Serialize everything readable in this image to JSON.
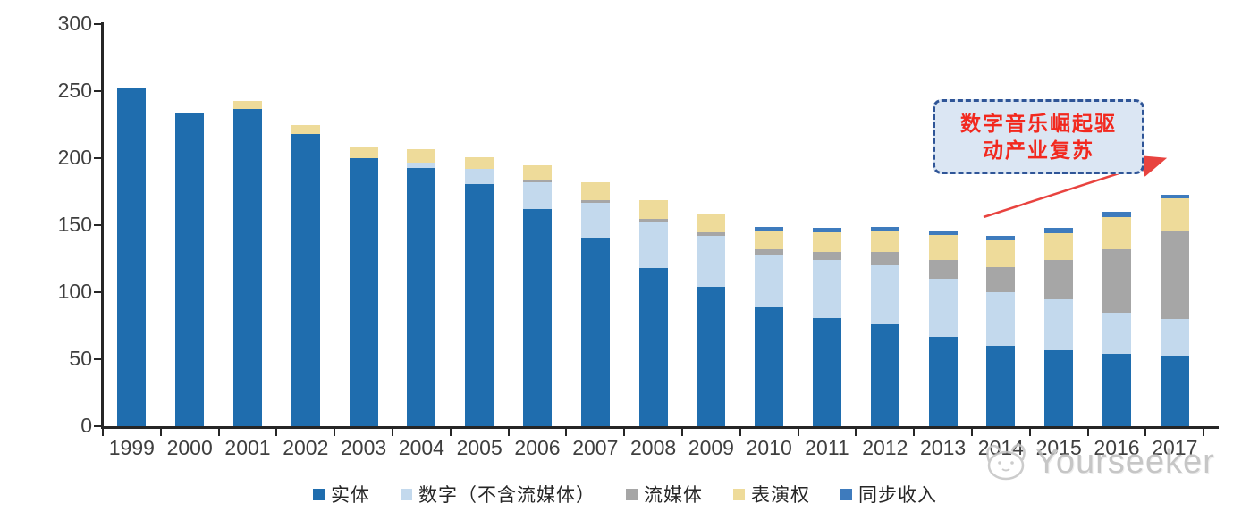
{
  "annotation": {
    "line1": "数字音乐崛起驱",
    "line2": "动产业复苏",
    "box_fill": "#dbe6f3",
    "box_border": "#2f5597",
    "text_color": "#f2281e",
    "arrow_color": "#e8433f"
  },
  "watermark": {
    "brand": "Yourseeker",
    "logo": "cat-face-icon",
    "color": "#bdbdbd"
  },
  "axis": {
    "label_color": "#3f3f3f",
    "line_color": "#262626"
  },
  "chart_data": {
    "type": "bar",
    "stacked": true,
    "title": "",
    "xlabel": "",
    "ylabel": "",
    "ylim": [
      0,
      300
    ],
    "yticks": [
      0,
      50,
      100,
      150,
      200,
      250,
      300
    ],
    "grid": false,
    "legend_position": "bottom",
    "categories": [
      "1999",
      "2000",
      "2001",
      "2002",
      "2003",
      "2004",
      "2005",
      "2006",
      "2007",
      "2008",
      "2009",
      "2010",
      "2011",
      "2012",
      "2013",
      "2014",
      "2015",
      "2016",
      "2017"
    ],
    "series": [
      {
        "key": "physical",
        "name": "实体",
        "color": "#1f6dae",
        "values": [
          252,
          234,
          237,
          218,
          200,
          193,
          181,
          162,
          141,
          118,
          104,
          89,
          81,
          76,
          67,
          60,
          57,
          54,
          52
        ]
      },
      {
        "key": "digital",
        "name": "数字（不含流媒体）",
        "color": "#c3d9ed",
        "values": [
          0,
          0,
          0,
          0,
          0,
          4,
          11,
          20,
          26,
          34,
          38,
          39,
          43,
          44,
          43,
          40,
          38,
          31,
          28
        ]
      },
      {
        "key": "streaming",
        "name": "流媒体",
        "color": "#a6a6a6",
        "values": [
          0,
          0,
          0,
          0,
          0,
          0,
          0,
          2,
          2,
          3,
          3,
          4,
          6,
          10,
          14,
          19,
          29,
          47,
          66
        ]
      },
      {
        "key": "performance",
        "name": "表演权",
        "color": "#eedb9a",
        "values": [
          0,
          0,
          6,
          7,
          8,
          10,
          9,
          11,
          13,
          14,
          13,
          14,
          15,
          16,
          19,
          20,
          20,
          24,
          24
        ]
      },
      {
        "key": "sync",
        "name": "同步收入",
        "color": "#3e7bbd",
        "values": [
          0,
          0,
          0,
          0,
          0,
          0,
          0,
          0,
          0,
          0,
          0,
          3,
          3,
          3,
          3,
          3,
          4,
          4,
          3
        ]
      }
    ],
    "totals": [
      252,
      234,
      243,
      225,
      208,
      207,
      201,
      195,
      182,
      169,
      158,
      149,
      148,
      149,
      146,
      142,
      148,
      160,
      173
    ]
  }
}
